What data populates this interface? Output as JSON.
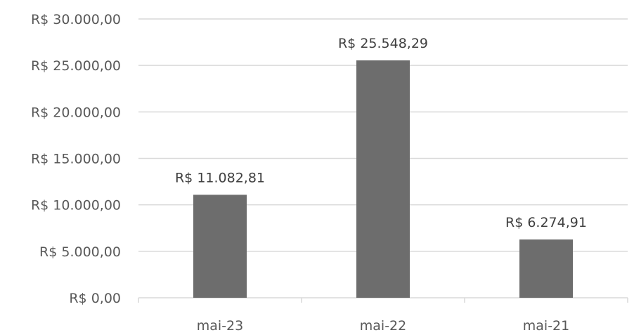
{
  "chart_data": {
    "type": "bar",
    "categories": [
      "mai-23",
      "mai-22",
      "mai-21"
    ],
    "values": [
      11082.81,
      25548.29,
      6274.91
    ],
    "data_labels": [
      "R$ 11.082,81",
      "R$ 25.548,29",
      "R$ 6.274,91"
    ],
    "y_tick_values": [
      0,
      5000,
      10000,
      15000,
      20000,
      25000,
      30000
    ],
    "y_tick_labels": [
      "R$ 0,00",
      "R$ 5.000,00",
      "R$ 10.000,00",
      "R$ 15.000,00",
      "R$ 20.000,00",
      "R$ 25.000,00",
      "R$ 30.000,00"
    ],
    "ylim": [
      0,
      30000
    ],
    "grid": true,
    "legend": "none",
    "title": "",
    "xlabel": "",
    "ylabel": "",
    "colors": {
      "bar": "#6d6d6d",
      "grid": "#d9d9d9",
      "axis": "#d9d9d9"
    }
  }
}
